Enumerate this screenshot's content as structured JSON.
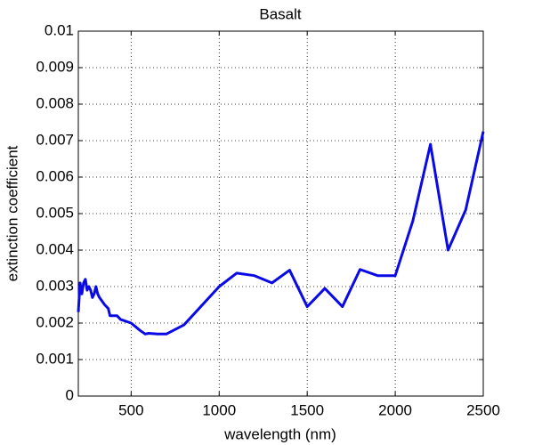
{
  "chart_data": {
    "type": "line",
    "title": "Basalt",
    "xlabel": "wavelength (nm)",
    "ylabel": "extinction coefficient",
    "x": [
      200,
      210,
      220,
      230,
      240,
      250,
      260,
      270,
      280,
      290,
      300,
      310,
      320,
      350,
      370,
      380,
      400,
      420,
      440,
      500,
      550,
      580,
      600,
      650,
      700,
      800,
      1000,
      1100,
      1200,
      1300,
      1400,
      1500,
      1600,
      1700,
      1800,
      1900,
      2000,
      2100,
      2200,
      2300,
      2400,
      2500
    ],
    "series": [
      {
        "name": "Basalt",
        "color": "#0a0ae6",
        "values": [
          0.0023,
          0.0031,
          0.0028,
          0.0031,
          0.0032,
          0.0029,
          0.003,
          0.0029,
          0.0027,
          0.0028,
          0.003,
          0.0028,
          0.0027,
          0.0025,
          0.0024,
          0.0022,
          0.0022,
          0.0022,
          0.0021,
          0.002,
          0.0018,
          0.0017,
          0.00172,
          0.0017,
          0.0017,
          0.00195,
          0.003,
          0.00337,
          0.0033,
          0.0031,
          0.00345,
          0.00245,
          0.00295,
          0.00245,
          0.00347,
          0.0033,
          0.0033,
          0.0048,
          0.0069,
          0.004,
          0.0051,
          0.00725
        ]
      }
    ],
    "xlim": [
      200,
      2500
    ],
    "xticks": [
      500,
      1000,
      1500,
      2000,
      2500
    ],
    "ylim": [
      0,
      0.01
    ],
    "yticks": [
      0,
      0.001,
      0.002,
      0.003,
      0.004,
      0.005,
      0.006,
      0.007,
      0.008,
      0.009,
      0.01
    ],
    "grid": true
  }
}
